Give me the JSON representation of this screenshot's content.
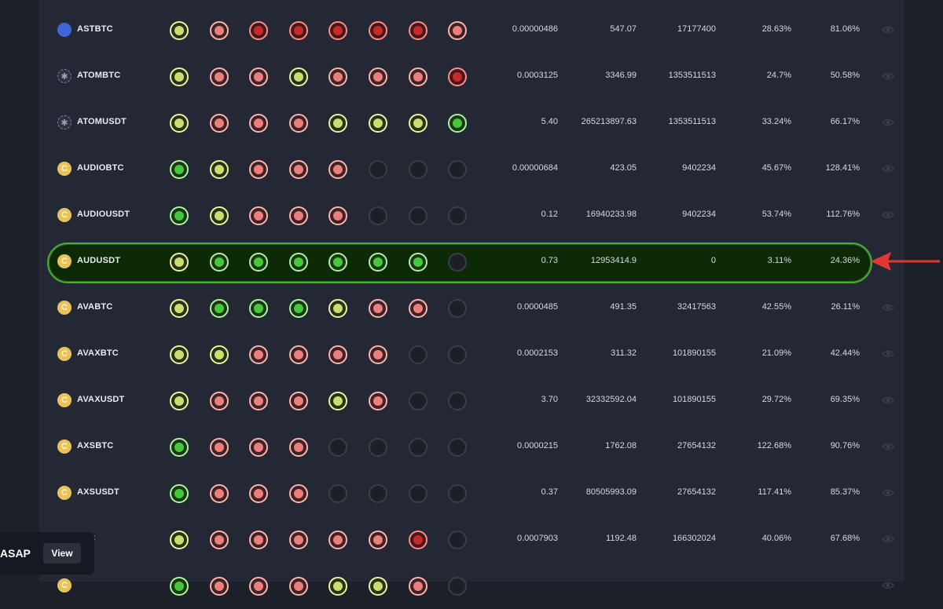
{
  "rows": [
    {
      "symbol": "ASTBTC",
      "icon": "blue",
      "dots": [
        "y",
        "p",
        "r",
        "r",
        "r",
        "r",
        "r",
        "p"
      ],
      "price": "0.00000486",
      "volume": "547.07",
      "supply": "17177400",
      "pct1": "28.63%",
      "pct2": "81.06%"
    },
    {
      "symbol": "ATOMBTC",
      "icon": "atom",
      "dots": [
        "y",
        "p",
        "p",
        "y",
        "p",
        "p",
        "p",
        "r"
      ],
      "price": "0.0003125",
      "volume": "3346.99",
      "supply": "1353511513",
      "pct1": "24.7%",
      "pct2": "50.58%"
    },
    {
      "symbol": "ATOMUSDT",
      "icon": "atom",
      "dots": [
        "y",
        "p",
        "p",
        "p",
        "y",
        "y",
        "y",
        "g"
      ],
      "price": "5.40",
      "volume": "265213897.63",
      "supply": "1353511513",
      "pct1": "33.24%",
      "pct2": "66.17%"
    },
    {
      "symbol": "AUDIOBTC",
      "icon": "gold",
      "dots": [
        "g",
        "y",
        "p",
        "p",
        "p",
        "k",
        "k",
        "k"
      ],
      "price": "0.00000684",
      "volume": "423.05",
      "supply": "9402234",
      "pct1": "45.67%",
      "pct2": "128.41%"
    },
    {
      "symbol": "AUDIOUSDT",
      "icon": "gold",
      "dots": [
        "g",
        "y",
        "p",
        "p",
        "p",
        "k",
        "k",
        "k"
      ],
      "price": "0.12",
      "volume": "16940233.98",
      "supply": "9402234",
      "pct1": "53.74%",
      "pct2": "112.76%"
    },
    {
      "symbol": "AUDUSDT",
      "icon": "gold",
      "dots": [
        "y",
        "g",
        "g",
        "g",
        "g",
        "g",
        "g",
        "k"
      ],
      "price": "0.73",
      "volume": "12953414.9",
      "supply": "0",
      "pct1": "3.11%",
      "pct2": "24.36%",
      "highlight": true
    },
    {
      "symbol": "AVABTC",
      "icon": "gold",
      "dots": [
        "y",
        "g",
        "g",
        "g",
        "y",
        "p",
        "p",
        "k"
      ],
      "price": "0.0000485",
      "volume": "491.35",
      "supply": "32417563",
      "pct1": "42.55%",
      "pct2": "26.11%"
    },
    {
      "symbol": "AVAXBTC",
      "icon": "gold",
      "dots": [
        "y",
        "y",
        "p",
        "p",
        "p",
        "p",
        "k",
        "k"
      ],
      "price": "0.0002153",
      "volume": "311.32",
      "supply": "101890155",
      "pct1": "21.09%",
      "pct2": "42.44%"
    },
    {
      "symbol": "AVAXUSDT",
      "icon": "gold",
      "dots": [
        "y",
        "p",
        "p",
        "p",
        "y",
        "p",
        "k",
        "k"
      ],
      "price": "3.70",
      "volume": "32332592.04",
      "supply": "101890155",
      "pct1": "29.72%",
      "pct2": "69.35%"
    },
    {
      "symbol": "AXSBTC",
      "icon": "gold",
      "dots": [
        "g",
        "p",
        "p",
        "p",
        "k",
        "k",
        "k",
        "k"
      ],
      "price": "0.0000215",
      "volume": "1762.08",
      "supply": "27654132",
      "pct1": "122.68%",
      "pct2": "90.76%"
    },
    {
      "symbol": "AXSUSDT",
      "icon": "gold",
      "dots": [
        "g",
        "p",
        "p",
        "p",
        "k",
        "k",
        "k",
        "k"
      ],
      "price": "0.37",
      "volume": "80505993.09",
      "supply": "27654132",
      "pct1": "117.41%",
      "pct2": "85.37%"
    },
    {
      "symbol": "BTC",
      "icon": "gold",
      "dots": [
        "y",
        "p",
        "p",
        "p",
        "p",
        "p",
        "r",
        "k"
      ],
      "price": "0.0007903",
      "volume": "1192.48",
      "supply": "166302024",
      "pct1": "40.06%",
      "pct2": "67.68%"
    },
    {
      "symbol": "",
      "icon": "gold",
      "dots": [
        "g",
        "p",
        "p",
        "p",
        "y",
        "y",
        "p",
        "k"
      ],
      "price": "",
      "volume": "",
      "supply": "",
      "pct1": "",
      "pct2": ""
    }
  ],
  "toast": {
    "text": "ASAP",
    "button": "View"
  }
}
